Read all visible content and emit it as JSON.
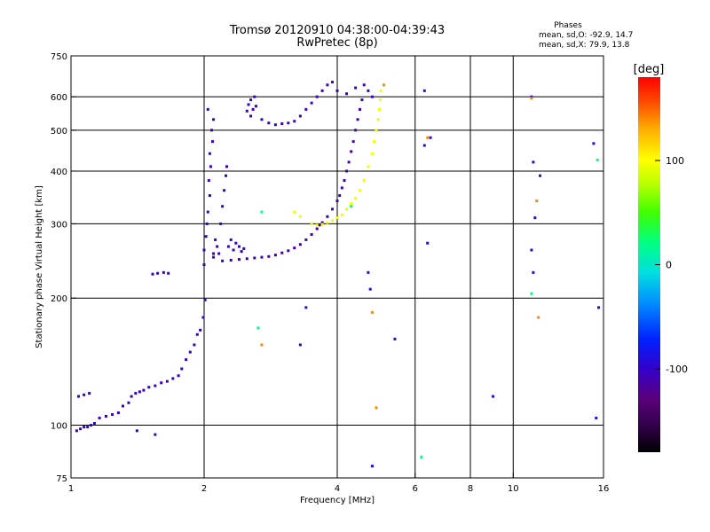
{
  "chart_data": {
    "type": "scatter",
    "title": "Tromsø 20120910 04:38:00-04:39:43",
    "subtitle": "RwPretec (8p)",
    "xlabel": "Frequency [MHz]",
    "ylabel": "Stationary phase Virtual Height [km]",
    "x_scale": "log",
    "y_scale": "log",
    "xlim": [
      1,
      16
    ],
    "ylim": [
      75,
      750
    ],
    "x_ticks": [
      1,
      2,
      4,
      6,
      8,
      10,
      16
    ],
    "y_ticks": [
      75,
      100,
      200,
      300,
      400,
      500,
      600,
      750
    ],
    "grid_x": [
      2,
      4,
      6,
      8,
      10
    ],
    "grid_y": [
      100,
      200,
      300,
      400,
      500,
      600
    ],
    "phase_stats": {
      "title": "Phases",
      "line_o": "mean, sd,O: -92.9, 14.7",
      "line_x": "mean, sd,X:  79.9, 13.8"
    },
    "colorbar": {
      "label": "[deg]",
      "range": [
        -180,
        180
      ],
      "ticks": [
        100,
        0,
        -100
      ]
    },
    "series": [
      {
        "phase": -100,
        "points": [
          [
            1.03,
            97
          ],
          [
            1.05,
            98
          ],
          [
            1.07,
            99
          ],
          [
            1.09,
            99
          ],
          [
            1.11,
            100
          ],
          [
            1.13,
            101
          ],
          [
            1.04,
            117
          ],
          [
            1.07,
            118
          ],
          [
            1.1,
            119
          ],
          [
            1.16,
            104
          ],
          [
            1.2,
            105
          ],
          [
            1.24,
            106
          ],
          [
            1.28,
            107
          ],
          [
            1.31,
            111
          ],
          [
            1.35,
            113
          ],
          [
            1.37,
            117
          ],
          [
            1.4,
            119
          ],
          [
            1.43,
            120
          ],
          [
            1.46,
            121
          ],
          [
            1.5,
            123
          ],
          [
            1.55,
            124
          ],
          [
            1.6,
            126
          ],
          [
            1.65,
            127
          ],
          [
            1.7,
            129
          ],
          [
            1.75,
            131
          ],
          [
            1.78,
            136
          ],
          [
            1.82,
            143
          ],
          [
            1.86,
            149
          ],
          [
            1.9,
            155
          ],
          [
            1.93,
            164
          ],
          [
            1.96,
            168
          ],
          [
            1.99,
            180
          ],
          [
            2.01,
            198
          ],
          [
            1.53,
            228
          ],
          [
            1.57,
            229
          ],
          [
            1.62,
            230
          ],
          [
            1.66,
            229
          ],
          [
            1.41,
            97
          ],
          [
            1.55,
            95
          ]
        ]
      },
      {
        "phase": -100,
        "points": [
          [
            2.0,
            240
          ],
          [
            2.0,
            260
          ],
          [
            2.02,
            280
          ],
          [
            2.03,
            300
          ],
          [
            2.04,
            320
          ],
          [
            2.06,
            350
          ],
          [
            2.05,
            380
          ],
          [
            2.07,
            410
          ],
          [
            2.06,
            440
          ],
          [
            2.09,
            470
          ],
          [
            2.08,
            500
          ],
          [
            2.1,
            530
          ],
          [
            2.04,
            560
          ],
          [
            2.1,
            250
          ],
          [
            2.12,
            275
          ],
          [
            2.14,
            265
          ],
          [
            2.16,
            255
          ],
          [
            2.18,
            300
          ],
          [
            2.2,
            330
          ],
          [
            2.22,
            360
          ],
          [
            2.24,
            390
          ],
          [
            2.25,
            410
          ],
          [
            2.27,
            265
          ],
          [
            2.3,
            275
          ],
          [
            2.33,
            260
          ],
          [
            2.36,
            270
          ],
          [
            2.4,
            265
          ],
          [
            2.43,
            258
          ],
          [
            2.46,
            262
          ],
          [
            2.5,
            555
          ],
          [
            2.52,
            575
          ],
          [
            2.55,
            590
          ],
          [
            2.58,
            560
          ],
          [
            2.6,
            600
          ],
          [
            2.55,
            540
          ],
          [
            2.62,
            570
          ]
        ]
      },
      {
        "phase": -110,
        "points": [
          [
            2.1,
            255
          ],
          [
            2.2,
            245
          ],
          [
            2.3,
            246
          ],
          [
            2.4,
            247
          ],
          [
            2.5,
            248
          ],
          [
            2.6,
            249
          ],
          [
            2.7,
            250
          ],
          [
            2.8,
            251
          ],
          [
            2.9,
            253
          ],
          [
            3.0,
            256
          ],
          [
            3.1,
            259
          ],
          [
            3.2,
            263
          ],
          [
            3.3,
            268
          ],
          [
            3.4,
            275
          ],
          [
            3.5,
            283
          ],
          [
            3.6,
            292
          ],
          [
            3.65,
            298
          ],
          [
            3.7,
            302
          ],
          [
            3.8,
            312
          ],
          [
            3.9,
            325
          ],
          [
            4.0,
            340
          ],
          [
            4.05,
            350
          ],
          [
            4.1,
            365
          ],
          [
            4.15,
            380
          ],
          [
            4.2,
            400
          ],
          [
            4.25,
            420
          ],
          [
            4.3,
            445
          ],
          [
            4.35,
            470
          ],
          [
            4.4,
            500
          ],
          [
            4.45,
            530
          ],
          [
            4.5,
            560
          ],
          [
            4.55,
            590
          ]
        ]
      },
      {
        "phase": -105,
        "points": [
          [
            2.7,
            530
          ],
          [
            2.8,
            520
          ],
          [
            2.9,
            515
          ],
          [
            3.0,
            518
          ],
          [
            3.1,
            520
          ],
          [
            3.2,
            525
          ],
          [
            3.3,
            540
          ],
          [
            3.4,
            560
          ],
          [
            3.5,
            580
          ],
          [
            3.6,
            600
          ],
          [
            3.7,
            620
          ],
          [
            3.8,
            640
          ],
          [
            3.9,
            650
          ],
          [
            4.0,
            620
          ],
          [
            4.2,
            610
          ],
          [
            4.4,
            630
          ],
          [
            4.6,
            640
          ],
          [
            4.7,
            620
          ],
          [
            4.8,
            600
          ]
        ]
      },
      {
        "phase": 95,
        "points": [
          [
            3.5,
            300
          ],
          [
            3.6,
            298
          ],
          [
            3.7,
            299
          ],
          [
            3.8,
            302
          ],
          [
            3.9,
            305
          ],
          [
            4.0,
            310
          ],
          [
            4.1,
            315
          ],
          [
            4.2,
            325
          ],
          [
            4.3,
            335
          ],
          [
            4.4,
            345
          ],
          [
            4.5,
            360
          ],
          [
            4.6,
            380
          ],
          [
            4.7,
            410
          ],
          [
            4.8,
            440
          ],
          [
            4.85,
            470
          ],
          [
            4.9,
            500
          ],
          [
            4.95,
            530
          ],
          [
            4.98,
            560
          ],
          [
            5.0,
            590
          ],
          [
            5.02,
            620
          ],
          [
            3.2,
            320
          ],
          [
            3.3,
            312
          ]
        ]
      },
      {
        "phase": -90,
        "points": [
          [
            6.3,
            620
          ],
          [
            6.5,
            480
          ],
          [
            6.4,
            270
          ],
          [
            6.3,
            460
          ],
          [
            9.0,
            117
          ],
          [
            11.0,
            600
          ],
          [
            11.1,
            420
          ],
          [
            11.2,
            310
          ],
          [
            11.0,
            260
          ],
          [
            11.1,
            230
          ],
          [
            11.5,
            390
          ],
          [
            15.2,
            465
          ],
          [
            15.6,
            190
          ],
          [
            15.4,
            104
          ],
          [
            5.4,
            160
          ],
          [
            4.7,
            230
          ],
          [
            4.75,
            210
          ],
          [
            3.3,
            155
          ],
          [
            3.4,
            190
          ],
          [
            4.8,
            80
          ]
        ]
      },
      {
        "phase": 140,
        "points": [
          [
            5.1,
            640
          ],
          [
            4.9,
            110
          ],
          [
            6.4,
            480
          ],
          [
            11.0,
            595
          ],
          [
            11.4,
            180
          ],
          [
            11.3,
            340
          ],
          [
            2.7,
            155
          ],
          [
            4.8,
            185
          ]
        ]
      },
      {
        "phase": 20,
        "points": [
          [
            2.65,
            170
          ],
          [
            11.0,
            205
          ],
          [
            6.2,
            84
          ],
          [
            2.7,
            320
          ],
          [
            4.3,
            330
          ],
          [
            15.5,
            425
          ]
        ]
      }
    ]
  }
}
